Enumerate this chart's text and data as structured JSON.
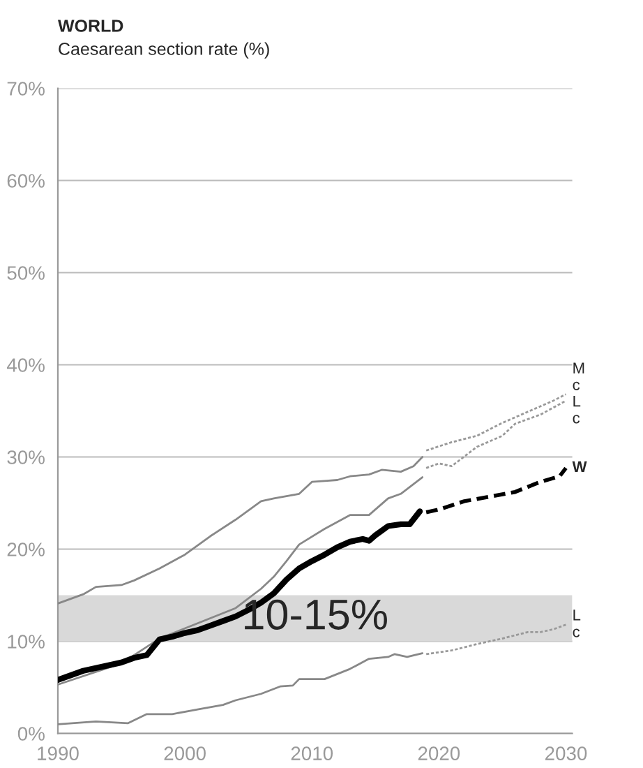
{
  "chart_data": {
    "type": "line",
    "title": "WORLD",
    "subtitle": "Caesarean section rate (%)",
    "xlim": [
      1990,
      2030.5
    ],
    "xticks": [
      1990,
      2000,
      2010,
      2020,
      2030
    ],
    "ylim": [
      0,
      70
    ],
    "yticks": [
      {
        "value": 0,
        "label": "0%"
      },
      {
        "value": 10,
        "label": "10%"
      },
      {
        "value": 20,
        "label": "20%"
      },
      {
        "value": 30,
        "label": "30%"
      },
      {
        "value": 40,
        "label": "40%"
      },
      {
        "value": 50,
        "label": "50%"
      },
      {
        "value": 60,
        "label": "60%"
      },
      {
        "value": 70,
        "label": "70%"
      }
    ],
    "grid": "y",
    "legend": false,
    "bands": [
      {
        "axis": "y",
        "from": 10,
        "to": 15,
        "label": "10-15%",
        "color": "#d9d9d9"
      }
    ],
    "series": [
      {
        "color": "#888888",
        "line_style": "solid",
        "x": [
          1990,
          1992,
          1993,
          1995,
          1996,
          1998,
          2000,
          2002,
          2004,
          2006,
          2007,
          2009,
          2010,
          2011,
          2012,
          2013,
          2014.5,
          2015.5,
          2017,
          2018,
          2018.7
        ],
        "values": [
          14.1,
          15.1,
          15.9,
          16.1,
          16.6,
          17.9,
          19.4,
          21.4,
          23.2,
          25.2,
          25.5,
          26.0,
          27.3,
          27.4,
          27.5,
          27.9,
          28.1,
          28.6,
          28.4,
          29.0,
          30.0
        ]
      },
      {
        "name": "M\nc",
        "color": "#999999",
        "line_style": "dotted",
        "x": [
          2019,
          2021,
          2023,
          2025,
          2027,
          2029,
          2030
        ],
        "values": [
          30.7,
          31.6,
          32.3,
          33.7,
          34.9,
          36.1,
          36.8
        ]
      },
      {
        "color": "#888888",
        "line_style": "solid",
        "x": [
          1990,
          1995,
          1998,
          2000,
          2002,
          2004,
          2006,
          2007,
          2008,
          2009,
          2011,
          2013,
          2014.5,
          2016,
          2017,
          2018.7
        ],
        "values": [
          5.3,
          7.6,
          10.3,
          11.4,
          12.5,
          13.6,
          15.7,
          17.0,
          18.7,
          20.5,
          22.2,
          23.7,
          23.7,
          25.5,
          26.0,
          27.8
        ]
      },
      {
        "name": "L\nc",
        "color": "#999999",
        "line_style": "dotted",
        "x": [
          2019,
          2020,
          2021,
          2023,
          2025,
          2026,
          2028,
          2030
        ],
        "values": [
          28.8,
          29.3,
          29.0,
          31.1,
          32.3,
          33.6,
          34.6,
          36.1
        ]
      },
      {
        "color": "#888888",
        "line_style": "solid",
        "x": [
          1990,
          1993,
          1995.5,
          1997,
          1999,
          2001,
          2003,
          2004,
          2006,
          2007.5,
          2008.5,
          2009,
          2011,
          2013,
          2014.5,
          2016,
          2016.5,
          2017.5,
          2018.7
        ],
        "values": [
          1.0,
          1.3,
          1.1,
          2.1,
          2.1,
          2.6,
          3.1,
          3.6,
          4.3,
          5.1,
          5.2,
          5.9,
          5.9,
          7.0,
          8.1,
          8.3,
          8.6,
          8.3,
          8.7
        ]
      },
      {
        "name": "L\nc",
        "color": "#999999",
        "line_style": "dotted",
        "x": [
          2019,
          2021,
          2023,
          2025,
          2027,
          2028,
          2029,
          2030
        ],
        "values": [
          8.6,
          9.0,
          9.7,
          10.3,
          11.0,
          11.0,
          11.3,
          11.8
        ]
      },
      {
        "color": "#000000",
        "line_style": "solid",
        "x": [
          1990,
          1992,
          1994,
          1995,
          1996,
          1997,
          1998,
          1999,
          2000,
          2001,
          2002,
          2003,
          2004,
          2005,
          2006,
          2007,
          2008,
          2009,
          2010,
          2011,
          2012,
          2013,
          2014,
          2014.5,
          2015,
          2016,
          2017,
          2017.7,
          2018.5
        ],
        "values": [
          5.8,
          6.8,
          7.4,
          7.7,
          8.2,
          8.5,
          10.2,
          10.5,
          10.9,
          11.2,
          11.7,
          12.2,
          12.7,
          13.4,
          14.2,
          15.2,
          16.7,
          17.9,
          18.7,
          19.4,
          20.2,
          20.8,
          21.1,
          20.9,
          21.5,
          22.5,
          22.7,
          22.7,
          24.1
        ]
      },
      {
        "name": "W",
        "color": "#000000",
        "line_style": "dashed",
        "x": [
          2019,
          2020,
          2022,
          2024,
          2026,
          2028,
          2029.5,
          2030
        ],
        "values": [
          24.0,
          24.3,
          25.2,
          25.7,
          26.2,
          27.3,
          27.9,
          28.8
        ]
      }
    ]
  }
}
